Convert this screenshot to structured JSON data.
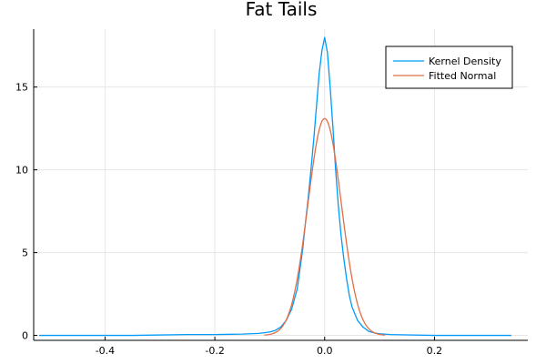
{
  "chart_data": {
    "type": "line",
    "title": "Fat Tails",
    "xlabel": "",
    "ylabel": "",
    "xlim": [
      -0.53,
      0.37
    ],
    "ylim": [
      -0.3,
      18.5
    ],
    "xticks": [
      -0.4,
      -0.2,
      0.0,
      0.2
    ],
    "xtick_labels": [
      "-0.4",
      "-0.2",
      "0.0",
      "0.2"
    ],
    "yticks": [
      0,
      5,
      10,
      15
    ],
    "ytick_labels": [
      "0",
      "5",
      "10",
      "15"
    ],
    "grid": true,
    "legend_position": "top-right",
    "series": [
      {
        "name": "Kernel Density",
        "color": "#009AFA",
        "x": [
          -0.52,
          -0.45,
          -0.35,
          -0.25,
          -0.2,
          -0.15,
          -0.12,
          -0.1,
          -0.09,
          -0.08,
          -0.07,
          -0.06,
          -0.05,
          -0.045,
          -0.04,
          -0.035,
          -0.03,
          -0.025,
          -0.02,
          -0.015,
          -0.01,
          -0.005,
          0.0,
          0.005,
          0.01,
          0.015,
          0.02,
          0.025,
          0.03,
          0.035,
          0.04,
          0.045,
          0.05,
          0.06,
          0.07,
          0.08,
          0.09,
          0.1,
          0.12,
          0.15,
          0.2,
          0.25,
          0.3,
          0.34
        ],
        "y": [
          0.0,
          0.0,
          0.0,
          0.05,
          0.05,
          0.08,
          0.12,
          0.2,
          0.3,
          0.5,
          0.9,
          1.6,
          2.8,
          4.0,
          5.2,
          6.8,
          8.3,
          10.0,
          11.8,
          13.8,
          15.8,
          17.2,
          18.0,
          17.1,
          15.0,
          12.6,
          10.0,
          7.8,
          6.0,
          4.6,
          3.4,
          2.4,
          1.7,
          0.9,
          0.5,
          0.25,
          0.15,
          0.1,
          0.05,
          0.03,
          0.0,
          0.0,
          0.0,
          0.0
        ]
      },
      {
        "name": "Fitted Normal",
        "color": "#E26F46",
        "mean": 0.0,
        "peak": 13.1,
        "x_range": [
          -0.11,
          0.11
        ]
      }
    ]
  }
}
